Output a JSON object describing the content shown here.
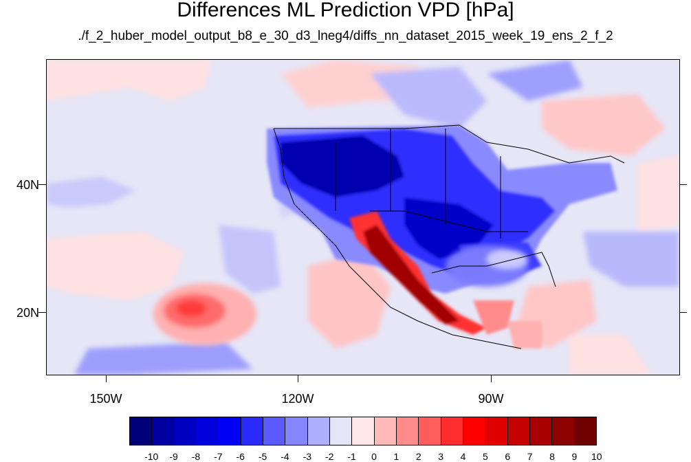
{
  "header": {
    "title": "Differences ML Prediction VPD [hPa]",
    "subtitle": "./f_2_huber_model_output_b8_e_30_d3_lneg4/diffs_nn_dataset_2015_week_19_ens_2_f_2"
  },
  "axes": {
    "lat_labels": [
      "40N",
      "20N"
    ],
    "lon_labels": [
      "150W",
      "120W",
      "90W"
    ]
  },
  "colorbar": {
    "labels": [
      "-10",
      "-9",
      "-8",
      "-7",
      "-6",
      "-5",
      "-4",
      "-3",
      "-2",
      "-1",
      "0",
      "1",
      "2",
      "3",
      "4",
      "5",
      "6",
      "7",
      "8",
      "9",
      "10"
    ],
    "colors": [
      "#00007a",
      "#0000a0",
      "#0000c0",
      "#0000dc",
      "#0000f5",
      "#2a2aff",
      "#5a5aff",
      "#8585ff",
      "#afafff",
      "#e5e5f8",
      "#ffe7e7",
      "#ffb9b9",
      "#ff8b8b",
      "#ff5c5c",
      "#ff2d2d",
      "#ff0000",
      "#e00000",
      "#c40000",
      "#a80000",
      "#8c0000",
      "#700000"
    ]
  },
  "map": {
    "background_color": "#e6e6f7",
    "region": "North America and eastern Pacific"
  }
}
